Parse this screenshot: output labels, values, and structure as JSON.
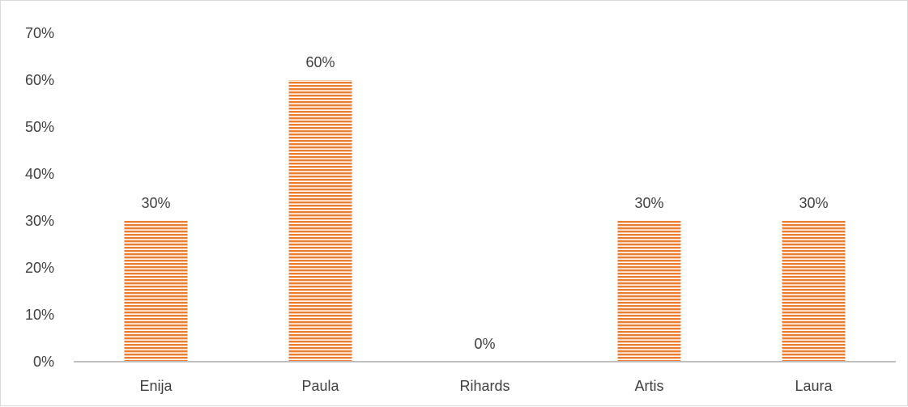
{
  "chart_data": {
    "type": "bar",
    "categories": [
      "Enija",
      "Paula",
      "Rihards",
      "Artis",
      "Laura"
    ],
    "values": [
      30,
      60,
      0,
      30,
      30
    ],
    "data_labels": [
      "30%",
      "60%",
      "0%",
      "30%",
      "30%"
    ],
    "y_ticks": [
      "0%",
      "10%",
      "20%",
      "30%",
      "40%",
      "50%",
      "60%",
      "70%"
    ],
    "ylim": [
      0,
      70
    ],
    "unit": "%",
    "title": "",
    "xlabel": "",
    "ylabel": "",
    "grid": false,
    "legend": "none",
    "bar_color": "#ED7D31",
    "bar_pattern": "horizontal-stripes",
    "axis_color": "#BFBFBF"
  }
}
